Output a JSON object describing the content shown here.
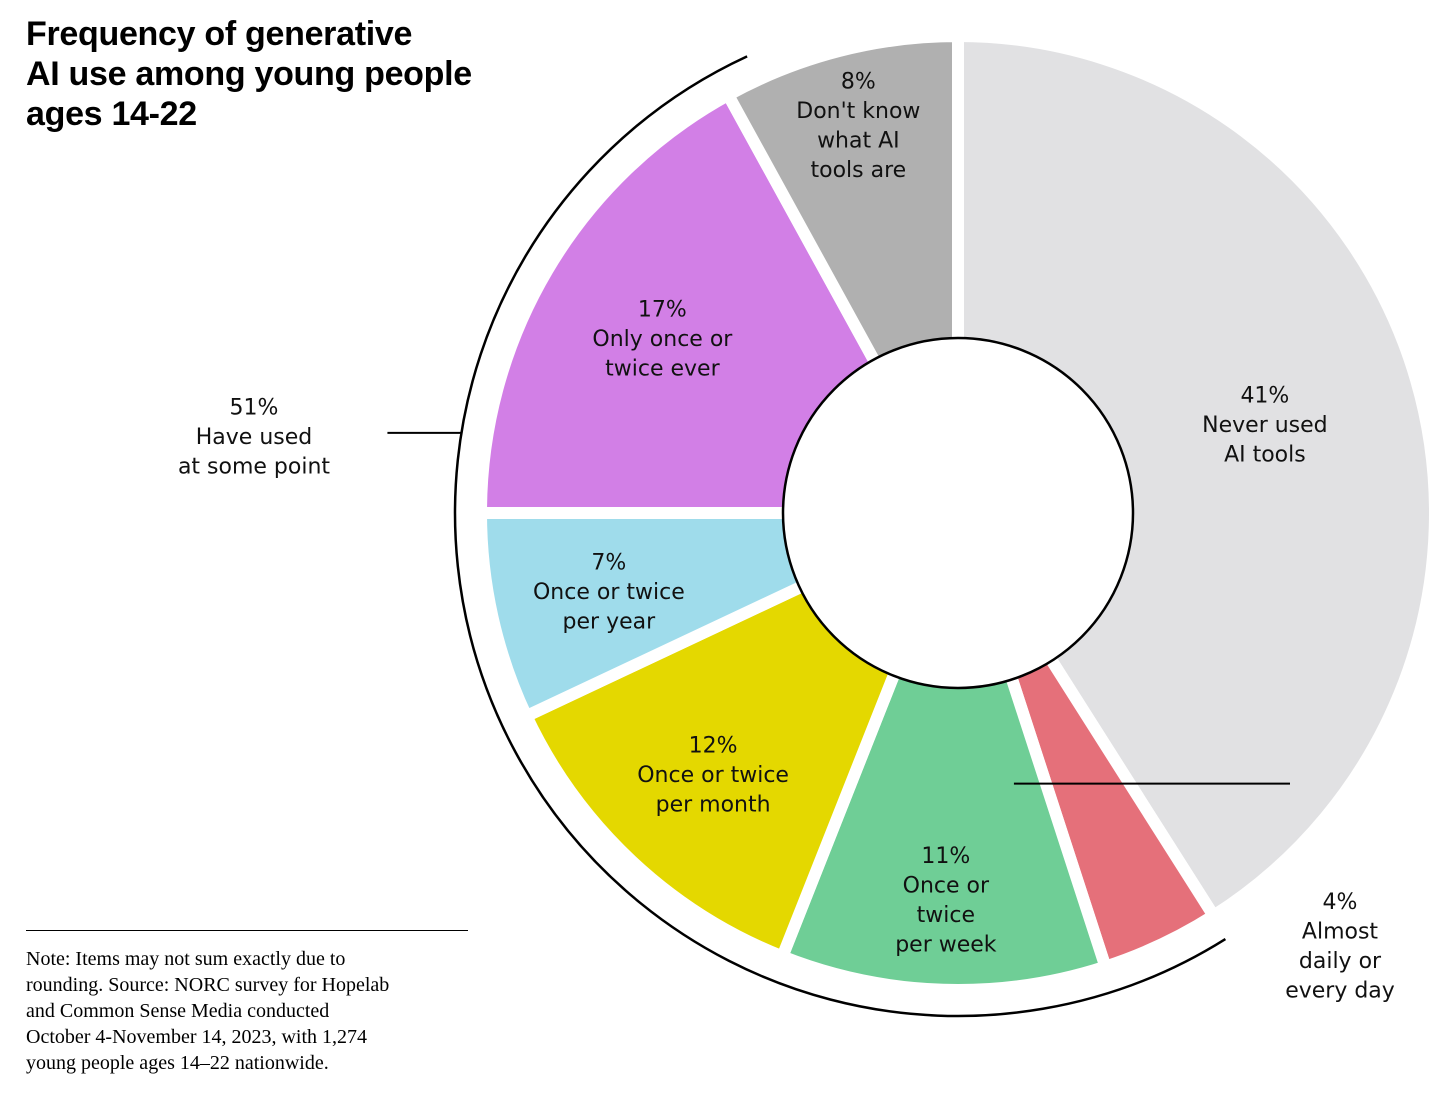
{
  "title_lines": [
    "Frequency of generative",
    "AI use among young people",
    "ages 14-22"
  ],
  "note_lines": [
    "Note: Items may not sum exactly due to",
    "rounding. Source: NORC survey for Hopelab",
    "and Common Sense Media conducted",
    "October 4-November 14, 2023, with 1,274",
    "young people ages 14–22 nationwide."
  ],
  "chart_data": {
    "type": "pie",
    "title": "Frequency of generative AI use among young people ages 14-22",
    "slices": [
      {
        "label_lines": [
          "41%",
          "Never used",
          "AI tools"
        ],
        "value": 41,
        "color": "#e1e1e3"
      },
      {
        "label_lines": [
          "4%",
          "Almost",
          "daily or",
          "every day"
        ],
        "value": 4,
        "color": "#e5707a"
      },
      {
        "label_lines": [
          "11%",
          "Once or",
          "twice",
          "per week"
        ],
        "value": 11,
        "color": "#6fce96"
      },
      {
        "label_lines": [
          "12%",
          "Once or twice",
          "per month"
        ],
        "value": 12,
        "color": "#e4d800"
      },
      {
        "label_lines": [
          "7%",
          "Once or twice",
          "per year"
        ],
        "value": 7,
        "color": "#9fdceb"
      },
      {
        "label_lines": [
          "17%",
          "Only once or",
          "twice ever"
        ],
        "value": 17,
        "color": "#d27fe6"
      },
      {
        "label_lines": [
          "8%",
          "Don't know",
          "what AI",
          "tools are"
        ],
        "value": 8,
        "color": "#b0b0b0"
      }
    ],
    "group_annotation": {
      "label_lines": [
        "51%",
        "Have used",
        "at some point"
      ],
      "value": 51
    }
  }
}
